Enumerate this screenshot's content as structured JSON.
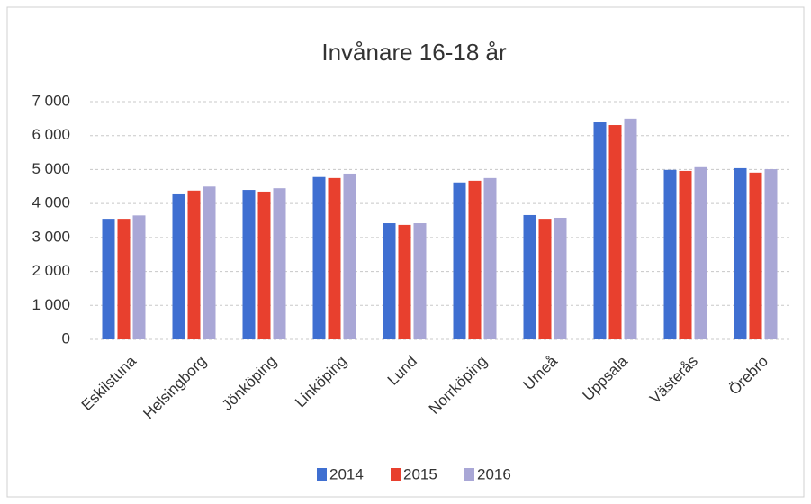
{
  "chart_data": {
    "type": "bar",
    "title": "Invånare 16-18 år",
    "categories": [
      "Eskilstuna",
      "Helsingborg",
      "Jönköping",
      "Linköping",
      "Lund",
      "Norrköping",
      "Umeå",
      "Uppsala",
      "Västerås",
      "Örebro"
    ],
    "series": [
      {
        "name": "2014",
        "color": "#3f6fd1",
        "values": [
          3550,
          4270,
          4400,
          4780,
          3420,
          4620,
          3660,
          6390,
          4990,
          5040
        ]
      },
      {
        "name": "2015",
        "color": "#e8402e",
        "values": [
          3550,
          4380,
          4350,
          4750,
          3370,
          4670,
          3550,
          6310,
          4960,
          4910
        ]
      },
      {
        "name": "2016",
        "color": "#a9a7d6",
        "values": [
          3650,
          4500,
          4450,
          4880,
          3420,
          4750,
          3580,
          6500,
          5070,
          5010
        ]
      }
    ],
    "ylim": [
      0,
      7000
    ],
    "yticks": [
      0,
      {
        "value": 1000,
        "label": "1 000"
      },
      {
        "value": 2000,
        "label": "2 000"
      },
      {
        "value": 3000,
        "label": "3 000"
      },
      {
        "value": 4000,
        "label": "4 000"
      },
      {
        "value": 5000,
        "label": "5 000"
      },
      {
        "value": 6000,
        "label": "6 000"
      },
      {
        "value": 7000,
        "label": "7 000"
      }
    ],
    "grid": true,
    "legend": "bottom"
  }
}
